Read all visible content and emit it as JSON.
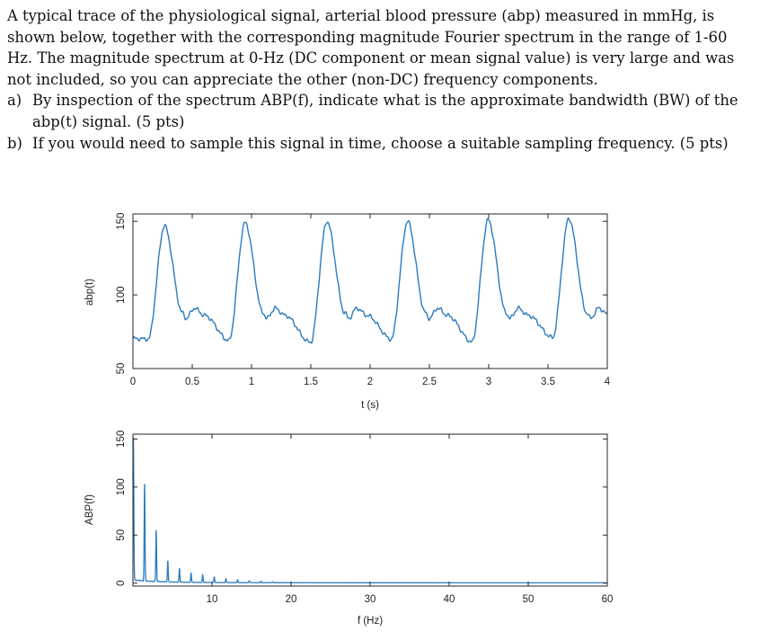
{
  "problem": {
    "intro": "A typical trace of the physiological signal, arterial blood pressure (abp) measured in mmHg, is shown below, together with the corresponding magnitude Fourier spectrum in the range of 1-60 Hz. The magnitude spectrum at 0-Hz (DC component or mean signal value) is very large and was not included, so you can appreciate the other (non-DC) frequency components.",
    "parts": [
      {
        "label": "a)",
        "text": "By inspection of the spectrum ABP(f), indicate what is the approximate bandwidth (BW) of the abp(t) signal. (5 pts)"
      },
      {
        "label": "b)",
        "text": "If you would need to sample this signal in time, choose a suitable sampling frequency. (5 pts)"
      }
    ]
  },
  "chart_data": [
    {
      "type": "line",
      "xlabel": "t (s)",
      "ylabel": "abp(t)",
      "xlim": [
        0,
        4
      ],
      "ylim": [
        50,
        155
      ],
      "xticks": [
        0,
        0.5,
        1,
        1.5,
        2,
        2.5,
        3,
        3.5,
        4
      ],
      "xtick_labels": [
        "0",
        "0.5",
        "1",
        "1.5",
        "2",
        "2.5",
        "3",
        "3.5",
        "4"
      ],
      "yticks": [
        50,
        100,
        150
      ],
      "ytick_labels": [
        "50",
        "100",
        "150"
      ],
      "color": "#2b7bbf",
      "beat_period_s": 0.68,
      "beats": [
        {
          "onset_t": 0.13,
          "peak_t": 0.27,
          "peak": 147,
          "diastolic": 70
        },
        {
          "onset_t": 0.81,
          "peak_t": 0.96,
          "peak": 149,
          "diastolic": 69
        },
        {
          "onset_t": 1.5,
          "peak_t": 1.64,
          "peak": 150,
          "diastolic": 68
        },
        {
          "onset_t": 2.18,
          "peak_t": 2.32,
          "peak": 150,
          "diastolic": 70
        },
        {
          "onset_t": 2.86,
          "peak_t": 3.0,
          "peak": 151,
          "diastolic": 68
        },
        {
          "onset_t": 3.54,
          "peak_t": 3.68,
          "peak": 152,
          "diastolic": 71
        }
      ]
    },
    {
      "type": "line",
      "xlabel": "f (Hz)",
      "ylabel": "ABP(f)",
      "xlim": [
        0,
        60
      ],
      "ylim": [
        -3,
        155
      ],
      "xticks": [
        10,
        20,
        30,
        40,
        50,
        60
      ],
      "xtick_labels": [
        "10",
        "20",
        "30",
        "40",
        "50",
        "60"
      ],
      "yticks": [
        0,
        50,
        100,
        150
      ],
      "ytick_labels": [
        "0",
        "50",
        "100",
        "150"
      ],
      "color": "#2b7bbf",
      "peaks": [
        {
          "f": 0.05,
          "mag": 150
        },
        {
          "f": 1.47,
          "mag": 102
        },
        {
          "f": 2.94,
          "mag": 53
        },
        {
          "f": 4.41,
          "mag": 22
        },
        {
          "f": 5.88,
          "mag": 14
        },
        {
          "f": 7.35,
          "mag": 10
        },
        {
          "f": 8.82,
          "mag": 8
        },
        {
          "f": 10.29,
          "mag": 6
        },
        {
          "f": 11.76,
          "mag": 4
        },
        {
          "f": 13.23,
          "mag": 3
        },
        {
          "f": 14.7,
          "mag": 2
        },
        {
          "f": 16.17,
          "mag": 1.5
        },
        {
          "f": 17.64,
          "mag": 1
        }
      ]
    }
  ]
}
